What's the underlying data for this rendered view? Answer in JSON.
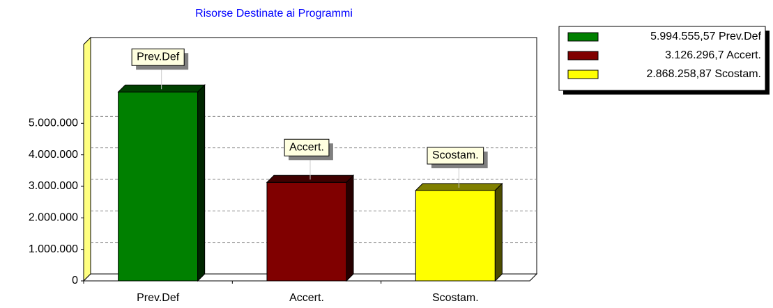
{
  "chart_data": {
    "type": "bar3d",
    "title": "Risorse Destinate ai Programmi",
    "categories": [
      "Prev.Def",
      "Accert.",
      "Scostam."
    ],
    "values": [
      5994555.57,
      3126296.7,
      2868258.87
    ],
    "value_labels": [
      "5.994.555,57",
      "3.126.296,7",
      "2.868.258,87"
    ],
    "colors": [
      "#008000",
      "#800000",
      "#ffff00"
    ],
    "ylim": [
      0,
      7500000
    ],
    "yticks": [
      0,
      {
        "value": 1000000,
        "label": "1.000.000"
      },
      {
        "value": 2000000,
        "label": "2.000.000"
      },
      {
        "value": 3000000,
        "label": "3.000.000"
      },
      {
        "value": 4000000,
        "label": "4.000.000"
      },
      {
        "value": 5000000,
        "label": "5.000.000"
      }
    ],
    "grid": true,
    "legend": "top-right"
  }
}
